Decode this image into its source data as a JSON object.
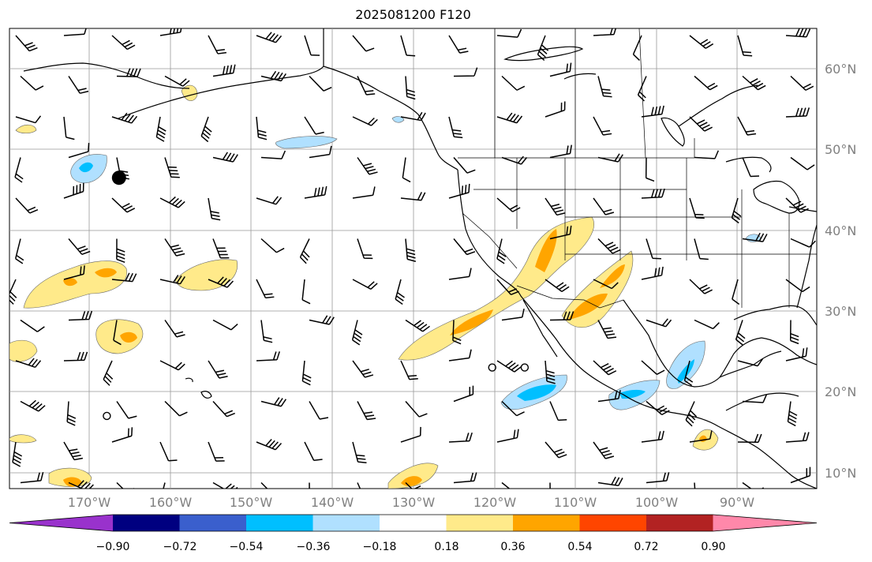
{
  "title": "2025081200 F120",
  "map": {
    "projection": "PlateCarree",
    "extent": {
      "lon_min": -180,
      "lon_max": -80.5,
      "lat_min": 8,
      "lat_max": 65
    },
    "background": "#ffffff",
    "gridline_color": "#999999",
    "coastline_color": "#000000",
    "lat_labels": [
      "60°N",
      "50°N",
      "40°N",
      "30°N",
      "20°N",
      "10°N"
    ],
    "lon_labels": [
      "170°W",
      "160°W",
      "150°W",
      "140°W",
      "130°W",
      "120°W",
      "110°W",
      "100°W",
      "90°W"
    ],
    "label_color": "#808080"
  },
  "colorbar": {
    "ticks": [
      "−0.90",
      "−0.72",
      "−0.54",
      "−0.36",
      "−0.18",
      "0.18",
      "0.36",
      "0.54",
      "0.72",
      "0.90"
    ],
    "colors": [
      "#9932cc",
      "#000080",
      "#3a5fcd",
      "#00bfff",
      "#b0e0ff",
      "#ffffff",
      "#ffea8a",
      "#ffa500",
      "#ff4500",
      "#b22222",
      "#ff88aa"
    ],
    "extend": "both"
  },
  "markers": [
    {
      "type": "large-dot",
      "lon": -166.5,
      "lat": 46.5
    },
    {
      "type": "open-circle",
      "lon": -120.5,
      "lat": 23
    },
    {
      "type": "open-circle",
      "lon": -116.5,
      "lat": 23
    },
    {
      "type": "open-circle",
      "lon": -168,
      "lat": 17
    }
  ]
}
